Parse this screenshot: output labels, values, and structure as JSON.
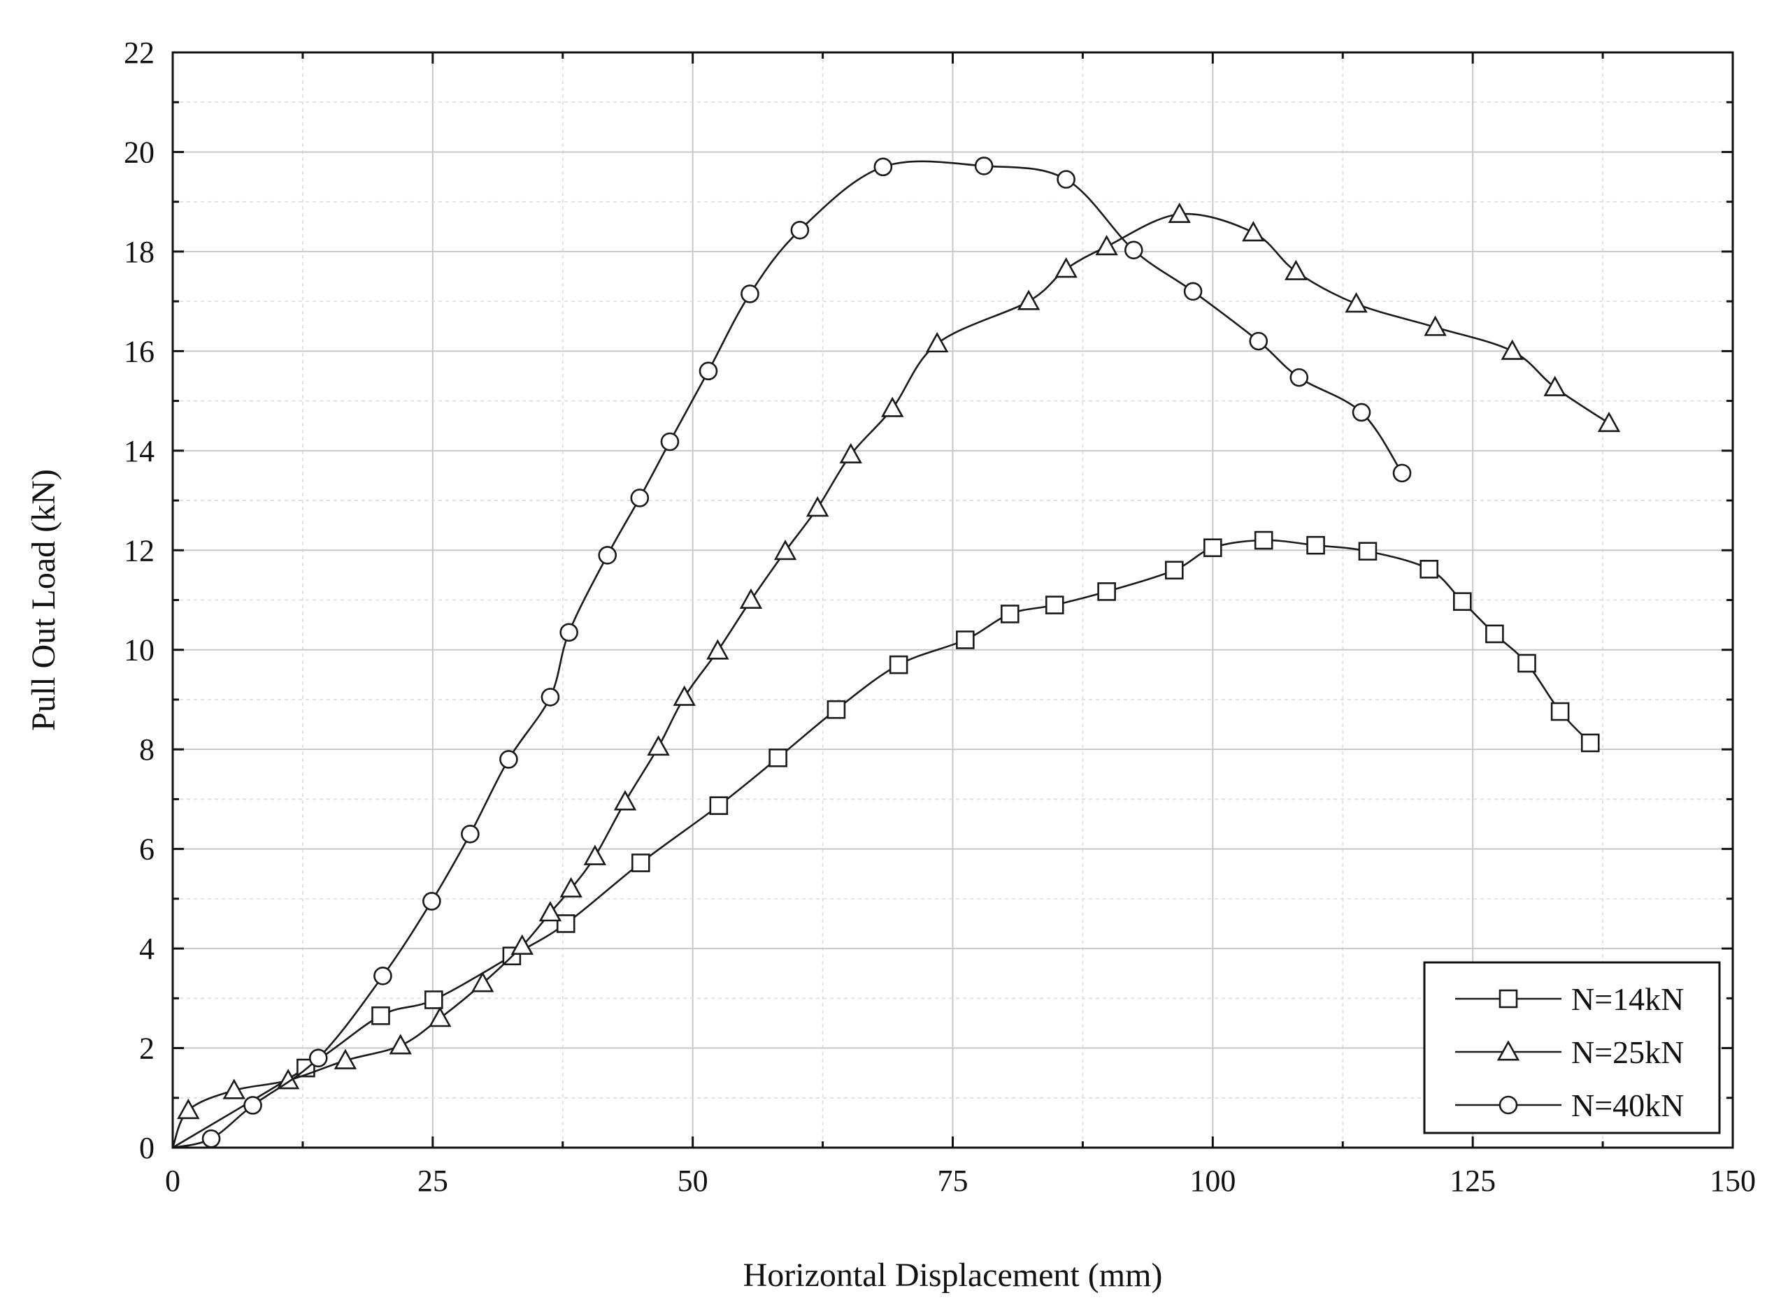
{
  "chart_data": {
    "type": "line",
    "xlabel": "Horizontal Displacement (mm)",
    "ylabel": "Pull Out Load (kN)",
    "xlim": [
      0,
      150
    ],
    "ylim": [
      0,
      22
    ],
    "x_ticks": [
      0,
      25,
      50,
      75,
      100,
      125,
      150
    ],
    "y_ticks": [
      0,
      2,
      4,
      6,
      8,
      10,
      12,
      14,
      16,
      18,
      20,
      22
    ],
    "x_tick_labels": [
      "0",
      "25",
      "50",
      "75",
      "100",
      "125",
      "150"
    ],
    "y_tick_labels": [
      "0",
      "2",
      "4",
      "6",
      "8",
      "10",
      "12",
      "14",
      "16",
      "18",
      "20",
      "22"
    ],
    "grid": true,
    "legend_position": "bottom-right",
    "series": [
      {
        "name": "N=14kN",
        "marker": "square",
        "x": [
          0,
          12.8,
          20.0,
          25.1,
          32.6,
          37.8,
          45.0,
          52.5,
          58.2,
          63.8,
          69.8,
          76.2,
          80.5,
          84.8,
          89.8,
          96.3,
          100.0,
          104.9,
          109.9,
          114.9,
          120.8,
          124.0,
          127.1,
          130.2,
          133.4,
          136.3
        ],
        "y": [
          0,
          1.6,
          2.65,
          2.97,
          3.85,
          4.5,
          5.72,
          6.87,
          7.83,
          8.8,
          9.7,
          10.2,
          10.72,
          10.9,
          11.17,
          11.6,
          12.05,
          12.2,
          12.1,
          11.98,
          11.62,
          10.97,
          10.32,
          9.73,
          8.76,
          8.13
        ]
      },
      {
        "name": "N=25kN",
        "marker": "triangle",
        "x": [
          0,
          1.5,
          5.9,
          11.1,
          16.6,
          21.9,
          25.7,
          29.8,
          33.6,
          36.3,
          38.3,
          40.6,
          43.5,
          46.7,
          49.2,
          52.4,
          55.6,
          58.9,
          62.0,
          65.2,
          69.2,
          73.5,
          82.3,
          85.9,
          89.8,
          96.8,
          103.9,
          108.0,
          113.8,
          121.4,
          128.8,
          132.9,
          138.1
        ],
        "y": [
          0,
          0.75,
          1.15,
          1.35,
          1.75,
          2.05,
          2.6,
          3.3,
          4.05,
          4.72,
          5.2,
          5.85,
          6.95,
          8.05,
          9.05,
          9.98,
          11.0,
          11.98,
          12.85,
          13.92,
          14.85,
          16.15,
          17.0,
          17.65,
          18.1,
          18.75,
          18.38,
          17.6,
          16.95,
          16.48,
          16.0,
          15.27,
          14.55
        ]
      },
      {
        "name": "N=40kN",
        "marker": "circle",
        "x": [
          0,
          3.7,
          7.7,
          14.0,
          20.2,
          24.9,
          28.6,
          32.3,
          36.3,
          38.1,
          41.8,
          44.9,
          47.8,
          51.5,
          55.5,
          60.3,
          68.3,
          78.0,
          85.9,
          92.4,
          98.1,
          104.4,
          108.3,
          114.3,
          118.2
        ],
        "y": [
          0,
          0.18,
          0.85,
          1.8,
          3.45,
          4.95,
          6.3,
          7.8,
          9.05,
          10.35,
          11.9,
          13.05,
          14.18,
          15.6,
          17.15,
          18.43,
          19.7,
          19.72,
          19.45,
          18.03,
          17.2,
          16.2,
          15.47,
          14.77,
          13.55
        ]
      }
    ]
  }
}
